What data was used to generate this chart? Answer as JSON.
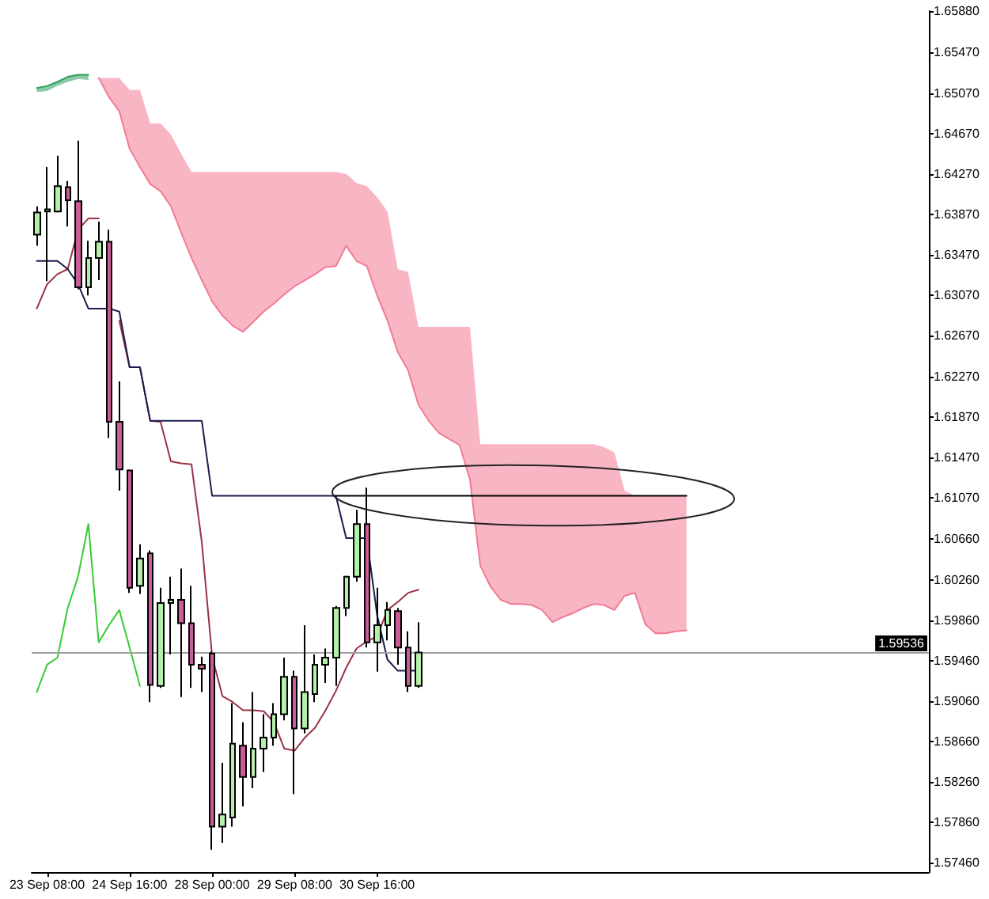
{
  "chart_data": {
    "type": "candlestick",
    "categories": [
      null,
      "23 Sep 08:00",
      null,
      null,
      null,
      null,
      null,
      null,
      null,
      "24 Sep 16:00",
      null,
      null,
      null,
      null,
      null,
      null,
      null,
      "28 Sep 00:00",
      null,
      null,
      null,
      null,
      null,
      null,
      null,
      "29 Sep 08:00",
      null,
      null,
      null,
      null,
      null,
      null,
      null,
      "30 Sep 16:00",
      null,
      null,
      null,
      null,
      null,
      null,
      null,
      null,
      null,
      null,
      null,
      null,
      null,
      null,
      null,
      null,
      null,
      null,
      null,
      null,
      null,
      null,
      null,
      null,
      null,
      null,
      null,
      null,
      null,
      null,
      null,
      null,
      null,
      null,
      null,
      null,
      null,
      null,
      null,
      null,
      null,
      null,
      null,
      null,
      null,
      null,
      null,
      null,
      null,
      null,
      null,
      null,
      null
    ],
    "ylim": [
      1.5737,
      1.6588
    ],
    "yticks": [
      {
        "value": 1.6588,
        "label": "1.65880"
      },
      {
        "value": 1.6547,
        "label": "1.65470"
      },
      {
        "value": 1.6507,
        "label": "1.65070"
      },
      {
        "value": 1.6467,
        "label": "1.64670"
      },
      {
        "value": 1.6427,
        "label": "1.64270"
      },
      {
        "value": 1.6387,
        "label": "1.63870"
      },
      {
        "value": 1.6347,
        "label": "1.63470"
      },
      {
        "value": 1.6307,
        "label": "1.63070"
      },
      {
        "value": 1.6267,
        "label": "1.62670"
      },
      {
        "value": 1.6227,
        "label": "1.62270"
      },
      {
        "value": 1.6187,
        "label": "1.61870"
      },
      {
        "value": 1.6147,
        "label": "1.61470"
      },
      {
        "value": 1.6107,
        "label": "1.61070"
      },
      {
        "value": 1.6066,
        "label": "1.60660"
      },
      {
        "value": 1.6026,
        "label": "1.60260"
      },
      {
        "value": 1.5986,
        "label": "1.59860"
      },
      {
        "value": 1.5946,
        "label": "1.59460"
      },
      {
        "value": 1.5906,
        "label": "1.59060"
      },
      {
        "value": 1.5866,
        "label": "1.58660"
      },
      {
        "value": 1.5826,
        "label": "1.58260"
      },
      {
        "value": 1.5786,
        "label": "1.57860"
      },
      {
        "value": 1.5746,
        "label": "1.57460"
      }
    ],
    "ohlc": [
      [
        1.6367,
        1.6395,
        1.6356,
        1.6389
      ],
      [
        1.639,
        1.6434,
        1.6321,
        1.6392
      ],
      [
        1.639,
        1.6445,
        1.6389,
        1.6415
      ],
      [
        1.6414,
        1.642,
        1.6375,
        1.6401
      ],
      [
        1.64,
        1.646,
        1.6313,
        1.6315
      ],
      [
        1.6315,
        1.6361,
        1.6307,
        1.6344
      ],
      [
        1.6344,
        1.638,
        1.6322,
        1.636
      ],
      [
        1.636,
        1.6372,
        1.6166,
        1.6182
      ],
      [
        1.6182,
        1.6222,
        1.6114,
        1.6135
      ],
      [
        1.6134,
        1.6135,
        1.6013,
        1.6018
      ],
      [
        1.602,
        1.6061,
        1.6012,
        1.6047
      ],
      [
        1.6052,
        1.6055,
        1.5905,
        1.5922
      ],
      [
        1.5921,
        1.6018,
        1.5919,
        1.6003
      ],
      [
        1.6003,
        1.6029,
        1.5952,
        1.6006
      ],
      [
        1.6006,
        1.6037,
        1.591,
        1.5983
      ],
      [
        1.5983,
        1.602,
        1.5919,
        1.5942
      ],
      [
        1.5942,
        1.595,
        1.5915,
        1.5938
      ],
      [
        1.5953,
        1.5955,
        1.5759,
        1.5782
      ],
      [
        1.5782,
        1.5845,
        1.5766,
        1.5794
      ],
      [
        1.5791,
        1.5904,
        1.5782,
        1.5864
      ],
      [
        1.5862,
        1.5885,
        1.5802,
        1.5831
      ],
      [
        1.5831,
        1.5915,
        1.582,
        1.5859
      ],
      [
        1.5859,
        1.5893,
        1.5836,
        1.587
      ],
      [
        1.587,
        1.5904,
        1.5862,
        1.5893
      ],
      [
        1.5893,
        1.5949,
        1.5887,
        1.593
      ],
      [
        1.593,
        1.5936,
        1.5814,
        1.5879
      ],
      [
        1.5879,
        1.5981,
        1.5874,
        1.5915
      ],
      [
        1.5913,
        1.5952,
        1.5905,
        1.5942
      ],
      [
        1.5942,
        1.5958,
        1.5924,
        1.5949
      ],
      [
        1.5949,
        1.6,
        1.5921,
        1.5998
      ],
      [
        1.5998,
        1.603,
        1.599,
        1.6029
      ],
      [
        1.6029,
        1.6095,
        1.6024,
        1.6081
      ],
      [
        1.6081,
        1.6117,
        1.5959,
        1.5964
      ],
      [
        1.5964,
        1.6018,
        1.5935,
        1.5981
      ],
      [
        1.5981,
        1.6004,
        1.5966,
        1.5996
      ],
      [
        1.5995,
        1.5998,
        1.5942,
        1.5959
      ],
      [
        1.5959,
        1.5975,
        1.5915,
        1.5921
      ],
      [
        1.5921,
        1.5984,
        1.5919,
        1.5954
      ],
      null,
      null,
      null,
      null,
      null,
      null,
      null,
      null,
      null,
      null,
      null,
      null,
      null,
      null,
      null,
      null,
      null,
      null,
      null,
      null,
      null,
      null,
      null,
      null,
      null,
      null,
      null,
      null,
      null,
      null,
      null,
      null,
      null,
      null,
      null,
      null,
      null,
      null,
      null,
      null,
      null,
      null,
      null,
      null,
      null,
      null,
      null,
      null,
      null
    ],
    "colors": [
      "#b4f0a8",
      "#b4f0a8",
      "#b4f0a8",
      "#cc5c97",
      "#cc5c97",
      "#b4f0a8",
      "#b4f0a8",
      "#cc5c97",
      "#cc5c97",
      "#cc5c97",
      "#b4f0a8",
      "#cc5c97",
      "#b4f0a8",
      "#b4f0a8",
      "#cc5c97",
      "#cc5c97",
      "#cc5c97",
      "#cc5c97",
      "#b4f0a8",
      "#b4f0a8",
      "#cc5c97",
      "#b4f0a8",
      "#b4f0a8",
      "#b4f0a8",
      "#b4f0a8",
      "#cc5c97",
      "#b4f0a8",
      "#b4f0a8",
      "#b4f0a8",
      "#b4f0a8",
      "#b4f0a8",
      "#b4f0a8",
      "#cc5c97",
      "#b4f0a8",
      "#b4f0a8",
      "#cc5c97",
      "#cc5c97",
      "#b4f0a8",
      null,
      null,
      null,
      null,
      null,
      null,
      null,
      null,
      null,
      null,
      null,
      null,
      null,
      null,
      null,
      null,
      null,
      null,
      null,
      null,
      null,
      null,
      null,
      null,
      null,
      null,
      null,
      null,
      null,
      null,
      null,
      null,
      null,
      null,
      null,
      null,
      null,
      null,
      null,
      null,
      null,
      null,
      null,
      null,
      null,
      null,
      null,
      null,
      null
    ],
    "series": [
      {
        "type": "line",
        "color": "#2e9e5b",
        "values": [
          1.6512,
          1.6514,
          1.6518,
          1.6523,
          1.6525,
          1.6525,
          null,
          null,
          null,
          null,
          null,
          null,
          null,
          null,
          null,
          null,
          null,
          null,
          null,
          null,
          null,
          null,
          null,
          null,
          null,
          null,
          null,
          null,
          null,
          null,
          null,
          null,
          null,
          null,
          null,
          null,
          null,
          null,
          null,
          null,
          null,
          null,
          null,
          null,
          null,
          null,
          null,
          null,
          null,
          null,
          null,
          null,
          null,
          null,
          null,
          null,
          null,
          null,
          null,
          null,
          null,
          null,
          null,
          null,
          null,
          null,
          null,
          null,
          null,
          null,
          null,
          null,
          null,
          null,
          null,
          null,
          null,
          null,
          null,
          null,
          null,
          null,
          null,
          null,
          null,
          null,
          null
        ],
        "lower": [
          1.6508,
          1.6509,
          1.6514,
          1.6518,
          1.6521,
          1.652,
          null,
          null,
          null,
          null,
          null,
          null,
          null,
          null,
          null,
          null,
          null,
          null,
          null,
          null,
          null,
          null,
          null,
          null,
          null,
          null,
          null,
          null,
          null,
          null,
          null,
          null,
          null,
          null,
          null,
          null,
          null,
          null,
          null,
          null,
          null,
          null,
          null,
          null,
          null,
          null,
          null,
          null,
          null,
          null,
          null,
          null,
          null,
          null,
          null,
          null,
          null,
          null,
          null,
          null,
          null,
          null,
          null,
          null,
          null,
          null,
          null,
          null,
          null,
          null,
          null,
          null,
          null,
          null,
          null,
          null,
          null,
          null,
          null,
          null,
          null,
          null,
          null,
          null,
          null,
          null,
          null
        ],
        "upper": [
          1.6512,
          1.6514,
          1.6518,
          1.6523,
          1.6525,
          1.6525,
          null,
          null,
          null,
          null,
          null,
          null,
          null,
          null,
          null,
          null,
          null,
          null,
          null,
          null,
          null,
          null,
          null,
          null,
          null,
          null,
          null,
          null,
          null,
          null,
          null,
          null,
          null,
          null,
          null,
          null,
          null,
          null,
          null,
          null,
          null,
          null,
          null,
          null,
          null,
          null,
          null,
          null,
          null,
          null,
          null,
          null,
          null,
          null,
          null,
          null,
          null,
          null,
          null,
          null,
          null,
          null,
          null,
          null,
          null,
          null,
          null,
          null,
          null,
          null,
          null,
          null,
          null,
          null,
          null,
          null,
          null,
          null,
          null,
          null,
          null,
          null,
          null,
          null,
          null,
          null,
          null
        ]
      },
      {
        "type": "line",
        "color": "#f27a94",
        "values": [
          null,
          null,
          null,
          null,
          null,
          null,
          1.6522,
          1.6503,
          1.6489,
          1.6452,
          1.6434,
          1.6417,
          1.641,
          1.6395,
          1.6369,
          1.6344,
          1.6322,
          1.6301,
          1.6287,
          1.6277,
          1.6271,
          1.6281,
          1.6291,
          1.6299,
          1.6308,
          1.6316,
          1.6322,
          1.6328,
          1.6335,
          1.6336,
          1.6356,
          1.6341,
          1.6336,
          1.6307,
          1.6282,
          1.6251,
          1.6233,
          1.6199,
          1.6183,
          1.6171,
          1.6165,
          1.6159,
          1.6125,
          1.604,
          1.6019,
          1.6006,
          1.6002,
          1.6002,
          1.6001,
          1.5996,
          1.5984,
          1.5989,
          1.5993,
          1.5998,
          1.6002,
          1.6001,
          1.5996,
          1.601,
          1.6013,
          1.5982,
          1.5973,
          1.5973,
          1.5975,
          1.5976,
          null,
          null,
          null,
          null,
          null,
          null,
          null,
          null,
          null,
          null,
          null,
          null,
          null,
          null,
          null,
          null,
          null,
          null,
          null,
          null,
          null,
          null,
          null
        ],
        "lower": [
          null,
          null,
          null,
          null,
          null,
          null,
          1.6522,
          1.6503,
          1.6489,
          1.6452,
          1.6434,
          1.6417,
          1.641,
          1.6395,
          1.6369,
          1.6344,
          1.6322,
          1.6301,
          1.6287,
          1.6277,
          1.6271,
          1.6281,
          1.6291,
          1.6299,
          1.6308,
          1.6316,
          1.6322,
          1.6328,
          1.6335,
          1.6336,
          1.6356,
          1.6341,
          1.6336,
          1.6307,
          1.6282,
          1.6251,
          1.6233,
          1.6199,
          1.6183,
          1.6171,
          1.6165,
          1.6159,
          1.6125,
          1.604,
          1.6019,
          1.6006,
          1.6002,
          1.6002,
          1.6001,
          1.5996,
          1.5984,
          1.5989,
          1.5993,
          1.5998,
          1.6002,
          1.6001,
          1.5996,
          1.601,
          1.6013,
          1.5982,
          1.5973,
          1.5973,
          1.5975,
          1.5976,
          null,
          null,
          null,
          null,
          null,
          null,
          null,
          null,
          null,
          null,
          null,
          null,
          null,
          null,
          null,
          null,
          null,
          null,
          null,
          null,
          null,
          null,
          null
        ],
        "upper": [
          null,
          null,
          null,
          null,
          null,
          null,
          1.6522,
          1.6522,
          1.6522,
          1.651,
          1.651,
          1.6477,
          1.6477,
          1.6466,
          1.6447,
          1.6429,
          1.6429,
          1.6429,
          1.6429,
          1.6429,
          1.6429,
          1.6429,
          1.6429,
          1.6429,
          1.6429,
          1.6429,
          1.6429,
          1.6429,
          1.6429,
          1.6429,
          1.6427,
          1.6418,
          1.6415,
          1.6404,
          1.639,
          1.6333,
          1.633,
          1.6276,
          1.6276,
          1.6276,
          1.6276,
          1.6276,
          1.6276,
          1.616,
          1.616,
          1.616,
          1.616,
          1.616,
          1.616,
          1.616,
          1.616,
          1.616,
          1.616,
          1.616,
          1.616,
          1.6157,
          1.6152,
          1.6114,
          1.6109,
          1.6109,
          1.6109,
          1.6109,
          1.6109,
          1.6109,
          null,
          null,
          null,
          null,
          null,
          null,
          null,
          null,
          null,
          null,
          null,
          null,
          null,
          null,
          null,
          null,
          null,
          null,
          null,
          null,
          null,
          null,
          null
        ]
      },
      {
        "type": "line",
        "color": "#993344",
        "values": [
          1.6294,
          1.6318,
          1.6328,
          1.6333,
          1.6372,
          1.6383,
          1.6383,
          null,
          1.6282,
          1.6236,
          1.6236,
          1.6183,
          1.6182,
          1.6143,
          1.6141,
          1.614,
          1.6063,
          1.595,
          1.5911,
          1.5905,
          1.5897,
          1.5897,
          1.5896,
          1.5885,
          1.5859,
          1.5857,
          1.587,
          1.588,
          1.5897,
          1.5916,
          1.5939,
          1.5958,
          1.5965,
          1.597,
          1.5996,
          1.6004,
          1.6013,
          1.6016,
          null,
          null,
          null,
          null,
          null,
          null,
          null,
          null,
          null,
          null,
          null,
          null,
          null,
          null,
          null,
          null,
          null,
          null,
          null,
          null,
          null,
          null,
          null,
          null,
          null,
          null,
          null,
          null,
          null,
          null,
          null,
          null,
          null,
          null,
          null,
          null,
          null,
          null,
          null,
          null,
          null,
          null,
          null,
          null,
          null,
          null,
          null,
          null,
          null
        ]
      },
      {
        "type": "line",
        "color": "#1c1c50",
        "values": [
          1.6341,
          1.6341,
          1.6341,
          1.6333,
          1.6318,
          1.6294,
          1.6294,
          1.6294,
          1.6291,
          1.6236,
          1.6236,
          1.6183,
          1.6183,
          1.6183,
          1.6183,
          1.6183,
          1.6183,
          1.6109,
          1.6109,
          1.6109,
          1.6109,
          1.6109,
          1.6109,
          1.6109,
          1.6109,
          1.6109,
          1.6109,
          1.6109,
          1.6109,
          1.6109,
          1.6067,
          1.6067,
          1.6067,
          1.5991,
          1.5947,
          1.5936,
          1.5936,
          1.5936,
          null,
          null,
          null,
          null,
          null,
          null,
          null,
          null,
          null,
          null,
          null,
          null,
          null,
          null,
          null,
          null,
          null,
          null,
          null,
          null,
          null,
          null,
          null,
          null,
          null,
          null,
          null,
          null,
          null,
          null,
          null,
          null,
          null,
          null,
          null,
          null,
          null,
          null,
          null,
          null,
          null,
          null,
          null,
          null,
          null,
          null,
          null,
          null,
          null
        ]
      },
      {
        "type": "line",
        "color": "#33cc33",
        "values": [
          1.5915,
          1.5942,
          1.5949,
          1.5998,
          1.6029,
          1.6081,
          1.5964,
          1.5981,
          1.5996,
          1.5959,
          1.5921,
          null,
          null,
          null,
          null,
          null,
          null,
          null,
          null,
          null,
          null,
          null,
          null,
          null,
          null,
          null,
          null,
          null,
          null,
          null,
          null,
          null,
          null,
          null,
          null,
          null,
          null,
          null,
          null,
          null,
          null,
          null,
          null,
          null,
          null,
          null,
          null,
          null,
          null,
          null,
          null,
          null,
          null,
          null,
          null,
          null,
          null,
          null,
          null,
          null,
          null,
          null,
          null,
          null,
          null,
          null,
          null,
          null,
          null,
          null,
          null,
          null,
          null,
          null,
          null,
          null,
          null,
          null,
          null,
          null,
          null,
          null,
          null,
          null,
          null,
          null,
          null
        ]
      },
      {
        "type": "line",
        "color": "#000000",
        "values": [
          null,
          null,
          null,
          null,
          null,
          null,
          null,
          null,
          null,
          null,
          null,
          null,
          null,
          null,
          null,
          null,
          null,
          null,
          null,
          null,
          null,
          null,
          null,
          null,
          null,
          null,
          null,
          null,
          null,
          1.6109,
          1.6109,
          1.6109,
          1.6109,
          1.6109,
          1.6109,
          1.6109,
          1.6109,
          1.6109,
          1.6109,
          1.6109,
          1.6109,
          1.6109,
          1.6109,
          1.6109,
          1.6109,
          1.6109,
          1.6109,
          1.6109,
          1.6109,
          1.6109,
          1.6109,
          1.6109,
          1.6109,
          1.6109,
          1.6109,
          1.6109,
          1.6109,
          1.6109,
          1.6109,
          1.6109,
          1.6109,
          1.6109,
          1.6109,
          1.6109,
          null,
          null,
          null,
          null,
          null,
          null,
          null,
          null,
          null,
          null,
          null,
          null,
          null,
          null,
          null,
          null,
          null,
          null,
          null,
          null,
          null,
          null,
          null
        ]
      }
    ],
    "ref_lines": [
      {
        "axis": "y",
        "value": 1.59536,
        "label": "1.59536",
        "color": "#a0a0a0"
      }
    ]
  }
}
